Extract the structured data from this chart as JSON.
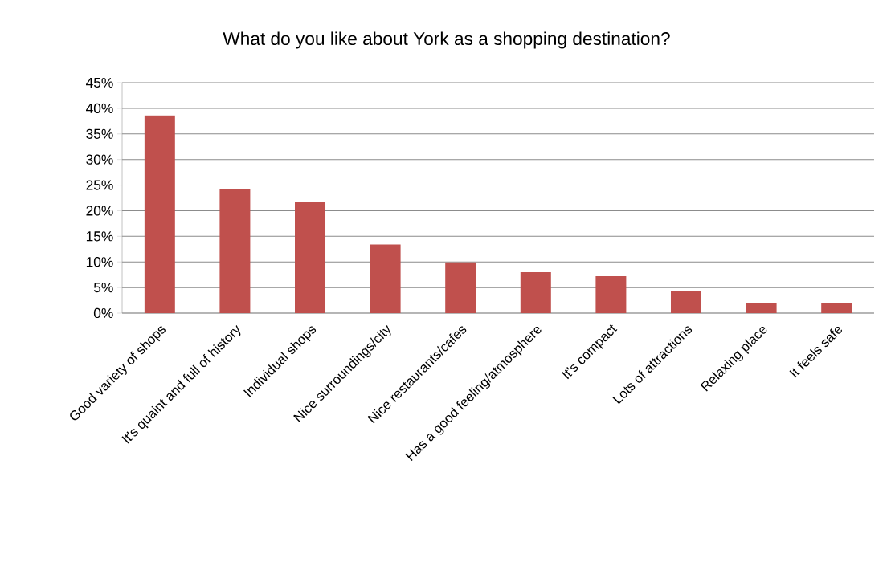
{
  "chart_data": {
    "type": "bar",
    "title": "What do you like about York as a shopping destination?",
    "categories": [
      "Good variety of shops",
      "It's quaint and full of history",
      "Individual shops",
      "Nice surroundings/city",
      "Nice restaurants/cafes",
      "Has a good feeling/atmosphere",
      "It's compact",
      "Lots of attractions",
      "Relaxing place",
      "It feels safe"
    ],
    "values": [
      38.6,
      24.2,
      21.7,
      13.4,
      9.9,
      8.0,
      7.2,
      4.4,
      1.9,
      1.9
    ],
    "color": "#c0504d",
    "ylim": [
      0,
      45
    ],
    "yticks": [
      {
        "value": 0,
        "label": "0%"
      },
      {
        "value": 5,
        "label": "5%"
      },
      {
        "value": 10,
        "label": "10%"
      },
      {
        "value": 15,
        "label": "15%"
      },
      {
        "value": 20,
        "label": "20%"
      },
      {
        "value": 25,
        "label": "25%"
      },
      {
        "value": 30,
        "label": "30%"
      },
      {
        "value": 35,
        "label": "35%"
      },
      {
        "value": 40,
        "label": "40%"
      },
      {
        "value": 45,
        "label": "45%"
      }
    ],
    "grid": "y"
  }
}
